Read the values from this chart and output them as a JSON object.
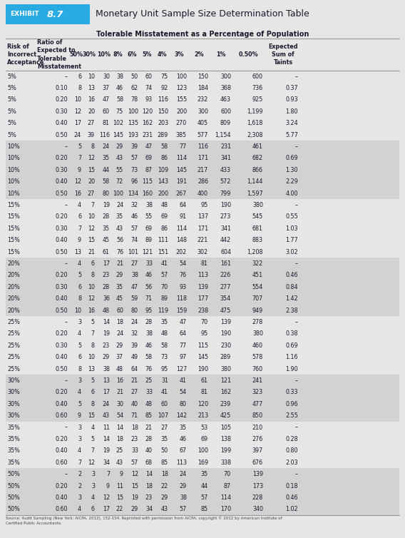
{
  "exhibit_label": "EXHIBIT",
  "exhibit_number": "8.7",
  "title": "Monetary Unit Sample Size Determination Table",
  "subtitle": "Tolerable Misstatement as a Percentage of Population",
  "header_line1": [
    "Risk of",
    "Ratio of",
    "",
    "",
    "",
    "",
    "",
    "",
    "",
    "",
    "",
    "",
    "",
    "Expected"
  ],
  "header_line2": [
    "Incorrect",
    "Expected to",
    "50%",
    "30%",
    "10%",
    "8%",
    "6%",
    "5%",
    "4%",
    "3%",
    "2%",
    "1%",
    "0.50%",
    "Sum of"
  ],
  "header_line3": [
    "Acceptance",
    "Tolerable",
    "",
    "",
    "",
    "",
    "",
    "",
    "",
    "",
    "",
    "",
    "",
    "Taints"
  ],
  "header_line4": [
    "",
    "Misstatement",
    "",
    "",
    "",
    "",
    "",
    "",
    "",
    "",
    "",
    "",
    "",
    ""
  ],
  "rows": [
    [
      "5%",
      "–",
      "6",
      "10",
      "30",
      "38",
      "50",
      "60",
      "75",
      "100",
      "150",
      "300",
      "600",
      "–"
    ],
    [
      "5%",
      "0.10",
      "8",
      "13",
      "37",
      "46",
      "62",
      "74",
      "92",
      "123",
      "184",
      "368",
      "736",
      "0.37"
    ],
    [
      "5%",
      "0.20",
      "10",
      "16",
      "47",
      "58",
      "78",
      "93",
      "116",
      "155",
      "232",
      "463",
      "925",
      "0.93"
    ],
    [
      "5%",
      "0.30",
      "12",
      "20",
      "60",
      "75",
      "100",
      "120",
      "150",
      "200",
      "300",
      "600",
      "1,199",
      "1.80"
    ],
    [
      "5%",
      "0.40",
      "17",
      "27",
      "81",
      "102",
      "135",
      "162",
      "203",
      "270",
      "405",
      "809",
      "1,618",
      "3.24"
    ],
    [
      "5%",
      "0.50",
      "24",
      "39",
      "116",
      "145",
      "193",
      "231",
      "289",
      "385",
      "577",
      "1,154",
      "2,308",
      "5.77"
    ],
    [
      "10%",
      "–",
      "5",
      "8",
      "24",
      "29",
      "39",
      "47",
      "58",
      "77",
      "116",
      "231",
      "461",
      "–"
    ],
    [
      "10%",
      "0.20",
      "7",
      "12",
      "35",
      "43",
      "57",
      "69",
      "86",
      "114",
      "171",
      "341",
      "682",
      "0.69"
    ],
    [
      "10%",
      "0.30",
      "9",
      "15",
      "44",
      "55",
      "73",
      "87",
      "109",
      "145",
      "217",
      "433",
      "866",
      "1.30"
    ],
    [
      "10%",
      "0.40",
      "12",
      "20",
      "58",
      "72",
      "96",
      "115",
      "143",
      "191",
      "286",
      "572",
      "1,144",
      "2.29"
    ],
    [
      "10%",
      "0.50",
      "16",
      "27",
      "80",
      "100",
      "134",
      "160",
      "200",
      "267",
      "400",
      "799",
      "1,597",
      "4.00"
    ],
    [
      "15%",
      "–",
      "4",
      "7",
      "19",
      "24",
      "32",
      "38",
      "48",
      "64",
      "95",
      "190",
      "380",
      "–"
    ],
    [
      "15%",
      "0.20",
      "6",
      "10",
      "28",
      "35",
      "46",
      "55",
      "69",
      "91",
      "137",
      "273",
      "545",
      "0.55"
    ],
    [
      "15%",
      "0.30",
      "7",
      "12",
      "35",
      "43",
      "57",
      "69",
      "86",
      "114",
      "171",
      "341",
      "681",
      "1.03"
    ],
    [
      "15%",
      "0.40",
      "9",
      "15",
      "45",
      "56",
      "74",
      "89",
      "111",
      "148",
      "221",
      "442",
      "883",
      "1.77"
    ],
    [
      "15%",
      "0.50",
      "13",
      "21",
      "61",
      "76",
      "101",
      "121",
      "151",
      "202",
      "302",
      "604",
      "1,208",
      "3.02"
    ],
    [
      "20%",
      "–",
      "4",
      "6",
      "17",
      "21",
      "27",
      "33",
      "41",
      "54",
      "81",
      "161",
      "322",
      "–"
    ],
    [
      "20%",
      "0.20",
      "5",
      "8",
      "23",
      "29",
      "38",
      "46",
      "57",
      "76",
      "113",
      "226",
      "451",
      "0.46"
    ],
    [
      "20%",
      "0.30",
      "6",
      "10",
      "28",
      "35",
      "47",
      "56",
      "70",
      "93",
      "139",
      "277",
      "554",
      "0.84"
    ],
    [
      "20%",
      "0.40",
      "8",
      "12",
      "36",
      "45",
      "59",
      "71",
      "89",
      "118",
      "177",
      "354",
      "707",
      "1.42"
    ],
    [
      "20%",
      "0.50",
      "10",
      "16",
      "48",
      "60",
      "80",
      "95",
      "119",
      "159",
      "238",
      "475",
      "949",
      "2.38"
    ],
    [
      "25%",
      "–",
      "3",
      "5",
      "14",
      "18",
      "24",
      "28",
      "35",
      "47",
      "70",
      "139",
      "278",
      "–"
    ],
    [
      "25%",
      "0.20",
      "4",
      "7",
      "19",
      "24",
      "32",
      "38",
      "48",
      "64",
      "95",
      "190",
      "380",
      "0.38"
    ],
    [
      "25%",
      "0.30",
      "5",
      "8",
      "23",
      "29",
      "39",
      "46",
      "58",
      "77",
      "115",
      "230",
      "460",
      "0.69"
    ],
    [
      "25%",
      "0.40",
      "6",
      "10",
      "29",
      "37",
      "49",
      "58",
      "73",
      "97",
      "145",
      "289",
      "578",
      "1.16"
    ],
    [
      "25%",
      "0.50",
      "8",
      "13",
      "38",
      "48",
      "64",
      "76",
      "95",
      "127",
      "190",
      "380",
      "760",
      "1.90"
    ],
    [
      "30%",
      "–",
      "3",
      "5",
      "13",
      "16",
      "21",
      "25",
      "31",
      "41",
      "61",
      "121",
      "241",
      "–"
    ],
    [
      "30%",
      "0.20",
      "4",
      "6",
      "17",
      "21",
      "27",
      "33",
      "41",
      "54",
      "81",
      "162",
      "323",
      "0.33"
    ],
    [
      "30%",
      "0.40",
      "5",
      "8",
      "24",
      "30",
      "40",
      "48",
      "60",
      "80",
      "120",
      "239",
      "477",
      "0.96"
    ],
    [
      "30%",
      "0.60",
      "9",
      "15",
      "43",
      "54",
      "71",
      "85",
      "107",
      "142",
      "213",
      "425",
      "850",
      "2.55"
    ],
    [
      "35%",
      "–",
      "3",
      "4",
      "11",
      "14",
      "18",
      "21",
      "27",
      "35",
      "53",
      "105",
      "210",
      "–"
    ],
    [
      "35%",
      "0.20",
      "3",
      "5",
      "14",
      "18",
      "23",
      "28",
      "35",
      "46",
      "69",
      "138",
      "276",
      "0.28"
    ],
    [
      "35%",
      "0.40",
      "4",
      "7",
      "19",
      "25",
      "33",
      "40",
      "50",
      "67",
      "100",
      "199",
      "397",
      "0.80"
    ],
    [
      "35%",
      "0.60",
      "7",
      "12",
      "34",
      "43",
      "57",
      "68",
      "85",
      "113",
      "169",
      "338",
      "676",
      "2.03"
    ],
    [
      "50%",
      "–",
      "2",
      "3",
      "7",
      "9",
      "12",
      "14",
      "18",
      "24",
      "35",
      "70",
      "139",
      "–"
    ],
    [
      "50%",
      "0.20",
      "2",
      "3",
      "9",
      "11",
      "15",
      "18",
      "22",
      "29",
      "44",
      "87",
      "173",
      "0.18"
    ],
    [
      "50%",
      "0.40",
      "3",
      "4",
      "12",
      "15",
      "19",
      "23",
      "29",
      "38",
      "57",
      "114",
      "228",
      "0.46"
    ],
    [
      "50%",
      "0.60",
      "4",
      "6",
      "17",
      "22",
      "29",
      "34",
      "43",
      "57",
      "85",
      "170",
      "340",
      "1.02"
    ]
  ],
  "group_starts": [
    0,
    6,
    11,
    16,
    21,
    26,
    30,
    34
  ],
  "group_ends": [
    6,
    11,
    16,
    21,
    26,
    30,
    34,
    38
  ],
  "shaded_groups": [
    1,
    3,
    5,
    7
  ],
  "footer": "Source: Audit Sampling (New York: AICPA, 2012), 152-154. Reprinted with permission from AICPA; copyright © 2012 by American Institute of\nCertified Public Accountants.",
  "header_bg": "#29abe2",
  "bg_color": "#e6e6e6",
  "shade_color": "#d2d2d2",
  "text_color": "#1a1a2e",
  "line_color": "#999999"
}
